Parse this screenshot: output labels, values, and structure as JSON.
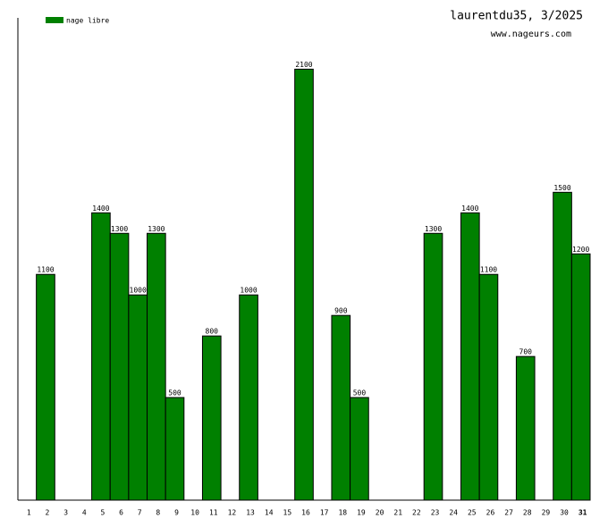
{
  "chart_data": {
    "type": "bar",
    "title": "laurentdu35, 3/2025",
    "subtitle": "www.nageurs.com",
    "categories": [
      "1",
      "2",
      "3",
      "4",
      "5",
      "6",
      "7",
      "8",
      "9",
      "10",
      "11",
      "12",
      "13",
      "14",
      "15",
      "16",
      "17",
      "18",
      "19",
      "20",
      "21",
      "22",
      "23",
      "24",
      "25",
      "26",
      "27",
      "28",
      "29",
      "30",
      "31"
    ],
    "series": [
      {
        "name": "nage libre",
        "color": "#008000",
        "values": [
          null,
          1100,
          null,
          null,
          1400,
          1300,
          1000,
          1300,
          500,
          null,
          800,
          null,
          1000,
          null,
          null,
          2100,
          null,
          900,
          500,
          null,
          null,
          null,
          1300,
          null,
          1400,
          1100,
          null,
          700,
          null,
          1500,
          1200
        ]
      }
    ],
    "ylim": [
      0,
      2350
    ]
  }
}
